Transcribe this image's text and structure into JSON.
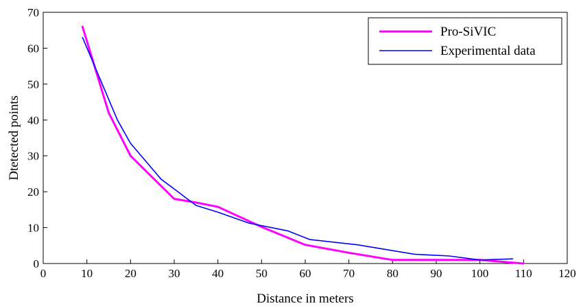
{
  "chart_data": {
    "type": "line",
    "title": "",
    "xlabel": "Distance in meters",
    "ylabel": "Dtetected points",
    "xlim": [
      0,
      120
    ],
    "ylim": [
      0,
      70
    ],
    "xticks": [
      "0",
      "10",
      "20",
      "30",
      "40",
      "50",
      "60",
      "70",
      "80",
      "90",
      "100",
      "110",
      "120"
    ],
    "yticks": [
      "0",
      "10",
      "20",
      "30",
      "40",
      "50",
      "60",
      "70"
    ],
    "grid": false,
    "legend_position": "top-right",
    "series": [
      {
        "name": "Pro-SiVIC",
        "color": "#ff00ff",
        "x": [
          9,
          15,
          20,
          30,
          35,
          40,
          50,
          60,
          70,
          80,
          90,
          100,
          110
        ],
        "y": [
          66,
          42,
          30,
          18,
          17,
          15.8,
          10.2,
          5.2,
          3,
          1,
          1,
          1,
          0
        ]
      },
      {
        "name": "Experimental data",
        "color": "#0000ff",
        "x": [
          9,
          17,
          20,
          27,
          35,
          40,
          47,
          56,
          61,
          72,
          85,
          93,
          100,
          107.5
        ],
        "y": [
          63,
          40,
          33.5,
          23.5,
          16.2,
          14.3,
          11.3,
          9.1,
          6.7,
          5.2,
          2.6,
          2.1,
          1,
          1.3
        ]
      }
    ]
  }
}
